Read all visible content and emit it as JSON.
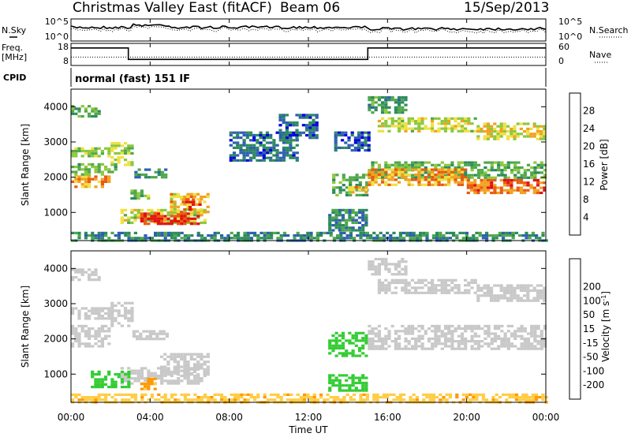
{
  "header": {
    "title": "Christmas Valley East (fitACF)",
    "beam": "Beam 06",
    "date": "15/Sep/2013"
  },
  "noise_panel": {
    "left_label": "N.Sky",
    "right_label": "N.Search",
    "left_ticks": [
      "10^5",
      "10^0"
    ],
    "right_ticks": [
      "10^5",
      "10^0"
    ]
  },
  "freq_panel": {
    "left_label_line1": "Freq.",
    "left_label_line2": "[MHz]",
    "right_label": "Nave",
    "left_ticks": [
      "18",
      "8"
    ],
    "right_ticks": [
      "60",
      "0"
    ],
    "freq_steps": [
      {
        "from_hour": 0,
        "to_hour": 2.9,
        "mhz": 16.5
      },
      {
        "from_hour": 2.9,
        "to_hour": 15.0,
        "mhz": 10.3
      },
      {
        "from_hour": 15.0,
        "to_hour": 24,
        "mhz": 16.5
      }
    ]
  },
  "cpid": {
    "label": "CPID",
    "mode_text": "normal (fast) 151 IF"
  },
  "time_axis": {
    "label": "Time UT",
    "ticks": [
      "00:00",
      "04:00",
      "08:00",
      "12:00",
      "16:00",
      "20:00",
      "00:00"
    ]
  },
  "colors": {
    "power_scale": [
      "#0000dd",
      "#2e5fb0",
      "#2c8a5c",
      "#4fa84a",
      "#8cc83c",
      "#f0e040",
      "#f2a020",
      "#e85a10",
      "#e51010"
    ],
    "velocity_scale": [
      "#ff0000",
      "#ff5a00",
      "#ff9900",
      "#ffcc44",
      "#c8c8c8",
      "#c8c8c8",
      "#33cc33",
      "#228b55",
      "#2255bb",
      "#1a1acc"
    ]
  },
  "chart_data": [
    {
      "type": "heatmap",
      "name": "power",
      "ylabel": "Slant Range [km]",
      "yticks": [
        "1000",
        "2000",
        "3000",
        "4000"
      ],
      "ylim": [
        200,
        4500
      ],
      "xlim_hours": [
        0,
        24
      ],
      "colorbar_label": "Power [dB]",
      "colorbar_ticks": [
        "4",
        "8",
        "12",
        "16",
        "20",
        "24",
        "28"
      ],
      "colorbar_range": [
        0,
        30
      ],
      "regions": [
        {
          "t0": 0.0,
          "t1": 2.0,
          "r0": 1750,
          "r1": 2050,
          "level": 22
        },
        {
          "t0": 0.0,
          "t1": 2.2,
          "r0": 2080,
          "r1": 2400,
          "level": 13
        },
        {
          "t0": 0.0,
          "t1": 2.0,
          "r0": 2600,
          "r1": 2850,
          "level": 14
        },
        {
          "t0": 0.0,
          "t1": 1.5,
          "r0": 3700,
          "r1": 4050,
          "level": 11
        },
        {
          "t0": 2.0,
          "t1": 3.1,
          "r0": 2350,
          "r1": 2600,
          "level": 17
        },
        {
          "t0": 2.0,
          "t1": 3.1,
          "r0": 2700,
          "r1": 3000,
          "level": 15
        },
        {
          "t0": 3.2,
          "t1": 4.8,
          "r0": 2000,
          "r1": 2250,
          "level": 9
        },
        {
          "t0": 3.0,
          "t1": 4.0,
          "r0": 1400,
          "r1": 1650,
          "level": 13
        },
        {
          "t0": 2.5,
          "t1": 6.8,
          "r0": 700,
          "r1": 1100,
          "level": 17
        },
        {
          "t0": 3.5,
          "t1": 6.5,
          "r0": 650,
          "r1": 1000,
          "level": 27
        },
        {
          "t0": 5.0,
          "t1": 6.9,
          "r0": 1000,
          "r1": 1550,
          "level": 20
        },
        {
          "t0": 5.6,
          "t1": 6.6,
          "r0": 1050,
          "r1": 1400,
          "level": 25
        },
        {
          "t0": 8.0,
          "t1": 11.5,
          "r0": 2500,
          "r1": 3300,
          "level": 6
        },
        {
          "t0": 10.5,
          "t1": 12.5,
          "r0": 3100,
          "r1": 3800,
          "level": 6
        },
        {
          "t0": 13.2,
          "t1": 15.0,
          "r0": 1500,
          "r1": 2100,
          "level": 11
        },
        {
          "t0": 14.0,
          "t1": 15.0,
          "r0": 1550,
          "r1": 1750,
          "level": 20
        },
        {
          "t0": 13.0,
          "t1": 15.0,
          "r0": 500,
          "r1": 1100,
          "level": 8
        },
        {
          "t0": 13.3,
          "t1": 15.0,
          "r0": 2750,
          "r1": 3300,
          "level": 5
        },
        {
          "t0": 15.0,
          "t1": 17.0,
          "r0": 3800,
          "r1": 4300,
          "level": 10
        },
        {
          "t0": 15.5,
          "t1": 20.5,
          "r0": 3300,
          "r1": 3700,
          "level": 17
        },
        {
          "t0": 20.5,
          "t1": 24.0,
          "r0": 3100,
          "r1": 3550,
          "level": 18
        },
        {
          "t0": 15.0,
          "t1": 24.0,
          "r0": 2000,
          "r1": 2450,
          "level": 12
        },
        {
          "t0": 15.0,
          "t1": 20.0,
          "r0": 1750,
          "r1": 2250,
          "level": 22
        },
        {
          "t0": 20.0,
          "t1": 24.0,
          "r0": 1550,
          "r1": 1950,
          "level": 24
        },
        {
          "t0": 0.0,
          "t1": 24.0,
          "r0": 200,
          "r1": 450,
          "level": 8
        }
      ]
    },
    {
      "type": "heatmap",
      "name": "velocity",
      "ylabel": "Slant Range [km]",
      "yticks": [
        "1000",
        "2000",
        "3000",
        "4000"
      ],
      "ylim": [
        200,
        4500
      ],
      "xlim_hours": [
        0,
        24
      ],
      "colorbar_label": "Velocity [m s^-1]",
      "colorbar_ticks": [
        "-200",
        "-100",
        "-50",
        "-15",
        "15",
        "50",
        "100",
        "200"
      ],
      "colorbar_range": [
        -250,
        250
      ],
      "regions": [
        {
          "t0": 0.0,
          "t1": 2.0,
          "r0": 1800,
          "r1": 2400,
          "level": 0
        },
        {
          "t0": 0.0,
          "t1": 2.0,
          "r0": 2600,
          "r1": 2900,
          "level": 0
        },
        {
          "t0": 0.0,
          "t1": 1.5,
          "r0": 3650,
          "r1": 4000,
          "level": 0
        },
        {
          "t0": 2.0,
          "t1": 3.1,
          "r0": 2350,
          "r1": 3050,
          "level": 0
        },
        {
          "t0": 3.1,
          "t1": 4.8,
          "r0": 2000,
          "r1": 2250,
          "level": 0
        },
        {
          "t0": 2.5,
          "t1": 6.8,
          "r0": 700,
          "r1": 1200,
          "level": 0
        },
        {
          "t0": 4.5,
          "t1": 7.0,
          "r0": 1000,
          "r1": 1600,
          "level": 0
        },
        {
          "t0": 1.0,
          "t1": 3.0,
          "r0": 650,
          "r1": 1100,
          "level": 35
        },
        {
          "t0": 3.5,
          "t1": 4.3,
          "r0": 600,
          "r1": 900,
          "level": -60
        },
        {
          "t0": 13.0,
          "t1": 15.0,
          "r0": 1500,
          "r1": 2200,
          "level": 35
        },
        {
          "t0": 13.0,
          "t1": 15.0,
          "r0": 500,
          "r1": 1000,
          "level": 35
        },
        {
          "t0": 15.5,
          "t1": 20.5,
          "r0": 3300,
          "r1": 3700,
          "level": 0
        },
        {
          "t0": 20.5,
          "t1": 24.0,
          "r0": 3100,
          "r1": 3550,
          "level": 0
        },
        {
          "t0": 15.0,
          "t1": 24.0,
          "r0": 1700,
          "r1": 2400,
          "level": 0
        },
        {
          "t0": 15.0,
          "t1": 17.0,
          "r0": 3800,
          "r1": 4300,
          "level": 0
        },
        {
          "t0": 0.0,
          "t1": 24.0,
          "r0": 200,
          "r1": 450,
          "level": -40
        }
      ]
    }
  ]
}
